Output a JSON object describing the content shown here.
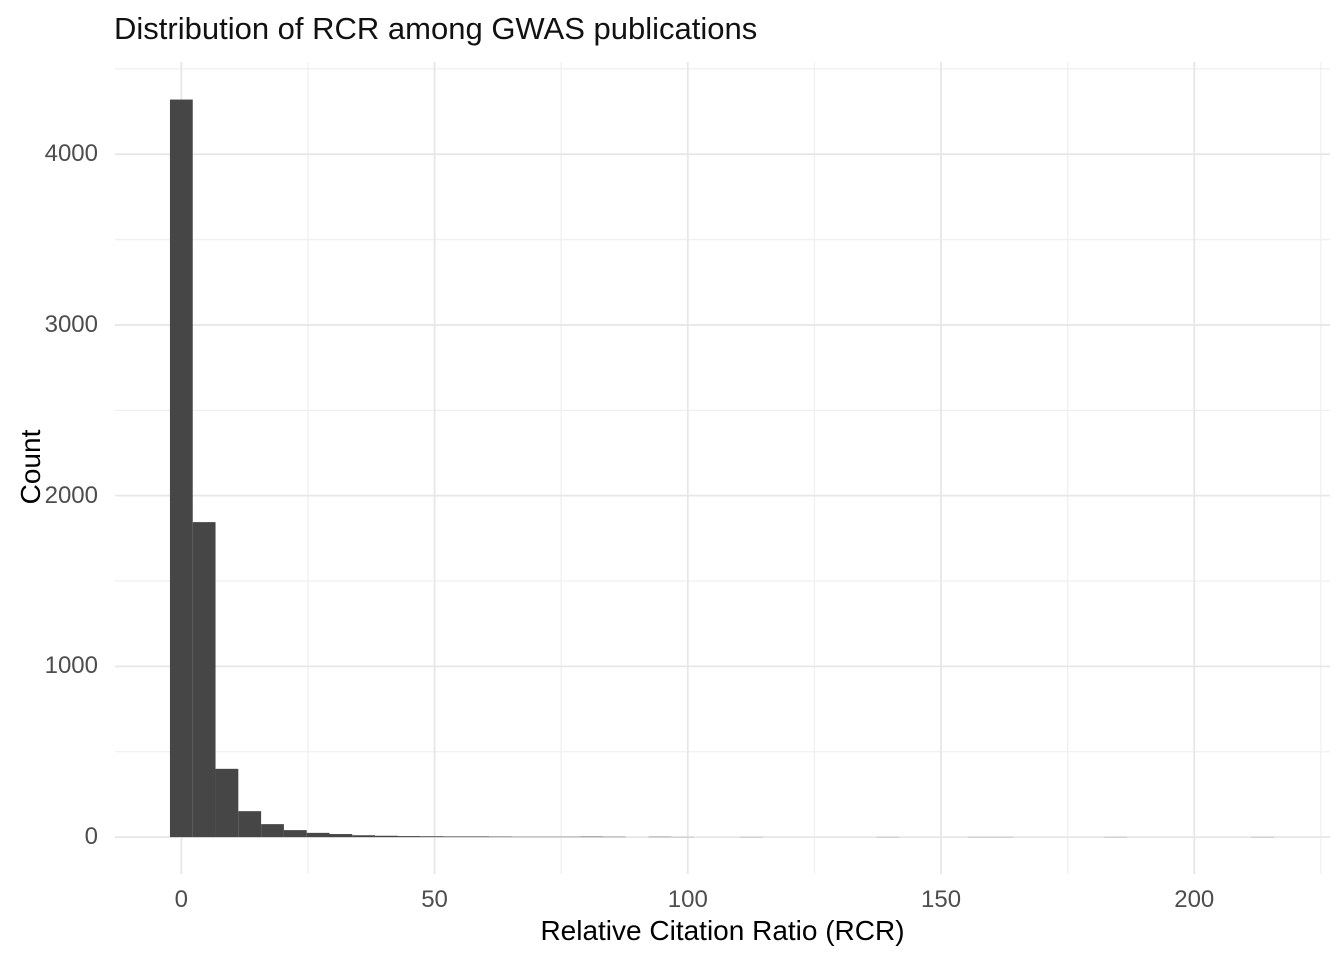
{
  "chart_data": {
    "type": "bar",
    "subtype": "histogram",
    "title": "Distribution of RCR among GWAS publications",
    "xlabel": "Relative Citation Ratio (RCR)",
    "ylabel": "Count",
    "x_tick_labels": [
      "0",
      "50",
      "100",
      "150",
      "200"
    ],
    "x_ticks": [
      0,
      50,
      100,
      150,
      200
    ],
    "x_minor_ticks": [
      25,
      75,
      125,
      175,
      225
    ],
    "y_tick_labels": [
      "0",
      "1000",
      "2000",
      "3000",
      "4000"
    ],
    "y_ticks": [
      0,
      1000,
      2000,
      3000,
      4000
    ],
    "y_minor_ticks": [
      500,
      1500,
      2500,
      3500,
      4500
    ],
    "xlim": [
      -13.1,
      226.8
    ],
    "ylim": [
      -216,
      4540
    ],
    "grid": "on",
    "legend": "none",
    "bin_width": 4.5,
    "bins": [
      {
        "center": 0,
        "count": 4320
      },
      {
        "center": 4.5,
        "count": 1845
      },
      {
        "center": 9,
        "count": 400
      },
      {
        "center": 13.5,
        "count": 152
      },
      {
        "center": 18,
        "count": 76
      },
      {
        "center": 22.5,
        "count": 41
      },
      {
        "center": 27,
        "count": 25
      },
      {
        "center": 31.5,
        "count": 18
      },
      {
        "center": 36,
        "count": 11
      },
      {
        "center": 40.5,
        "count": 8
      },
      {
        "center": 45,
        "count": 6
      },
      {
        "center": 49.5,
        "count": 5
      },
      {
        "center": 54,
        "count": 4
      },
      {
        "center": 58.5,
        "count": 4
      },
      {
        "center": 63,
        "count": 3
      },
      {
        "center": 67.5,
        "count": 2
      },
      {
        "center": 72,
        "count": 2
      },
      {
        "center": 76.5,
        "count": 2
      },
      {
        "center": 81,
        "count": 3
      },
      {
        "center": 85.5,
        "count": 2
      },
      {
        "center": 94.5,
        "count": 2
      },
      {
        "center": 99,
        "count": 1
      },
      {
        "center": 112.5,
        "count": 1
      },
      {
        "center": 139.5,
        "count": 1
      },
      {
        "center": 157.5,
        "count": 1
      },
      {
        "center": 162,
        "count": 1
      },
      {
        "center": 184.5,
        "count": 1
      },
      {
        "center": 213.5,
        "count": 1
      }
    ],
    "colors": {
      "bar_fill": "#464646",
      "grid_major": "#e7e7e7",
      "grid_minor": "#f0f0f0",
      "tick_label": "#4d4d4d",
      "title_text": "#111111",
      "axis_title_text": "#000000",
      "background": "#ffffff"
    }
  }
}
